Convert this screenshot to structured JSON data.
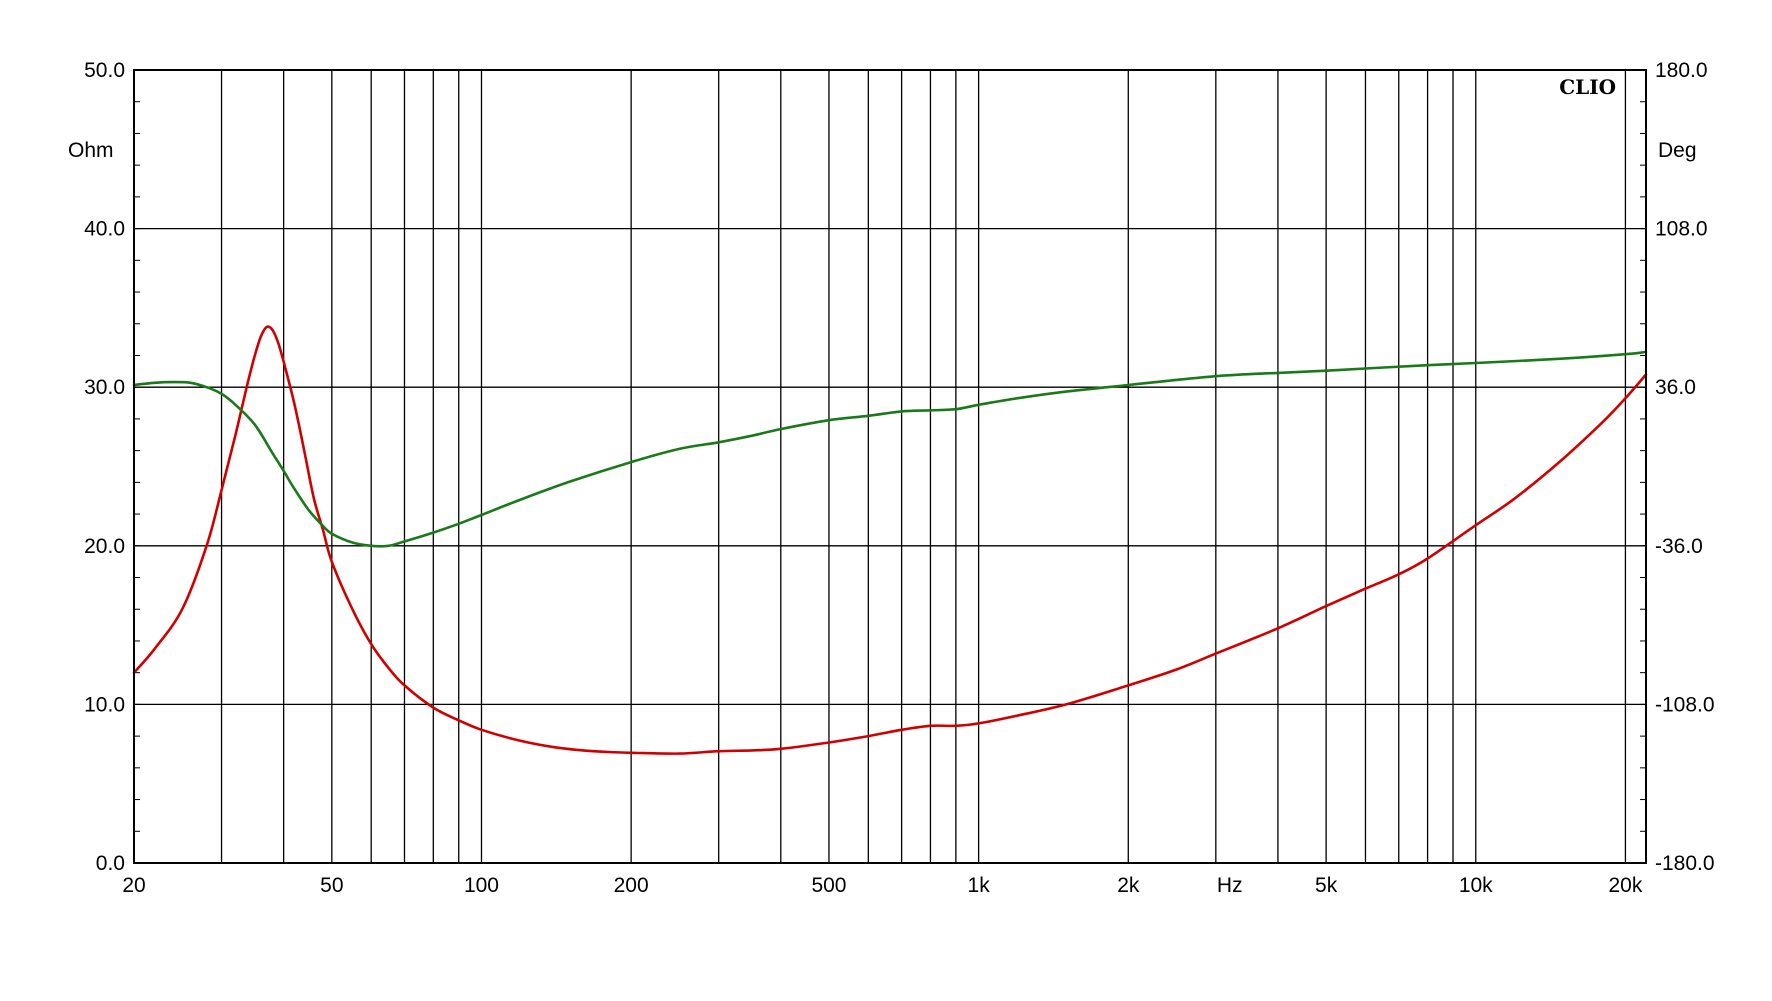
{
  "chart_data": {
    "type": "line",
    "brand_label": "CLIO",
    "x_axis": {
      "scale": "log",
      "range": [
        20,
        22000
      ],
      "unit_label": "Hz",
      "tick_values": [
        20,
        50,
        100,
        200,
        500,
        1000,
        2000,
        5000,
        10000,
        20000
      ],
      "tick_labels": [
        "20",
        "50",
        "100",
        "200",
        "500",
        "1k",
        "2k",
        "5k",
        "10k",
        "20k"
      ],
      "unit_label_position_value": 3200
    },
    "y_left": {
      "range": [
        0,
        50
      ],
      "unit_label": "Ohm",
      "tick_values": [
        0,
        10,
        20,
        30,
        40,
        50
      ],
      "tick_labels": [
        "0.0",
        "10.0",
        "20.0",
        "30.0",
        "40.0",
        "50.0"
      ]
    },
    "y_right": {
      "range": [
        -180,
        180
      ],
      "unit_label": "Deg",
      "tick_values": [
        -180,
        -108,
        -36,
        36,
        108,
        180
      ],
      "tick_labels": [
        "-180.0",
        "-108.0",
        "-36.0",
        "36.0",
        "108.0",
        "180.0"
      ]
    },
    "grid": true,
    "series": [
      {
        "color": "#d00000",
        "axis": "left",
        "points": [
          [
            20,
            12.0
          ],
          [
            22,
            13.5
          ],
          [
            25,
            16.0
          ],
          [
            28,
            20.0
          ],
          [
            30,
            23.5
          ],
          [
            32,
            27.0
          ],
          [
            34,
            30.5
          ],
          [
            35,
            32.0
          ],
          [
            36,
            33.2
          ],
          [
            37,
            33.8
          ],
          [
            38,
            33.6
          ],
          [
            39,
            32.8
          ],
          [
            40,
            31.6
          ],
          [
            42,
            29.0
          ],
          [
            44,
            26.0
          ],
          [
            46,
            23.0
          ],
          [
            48,
            21.0
          ],
          [
            50,
            19.0
          ],
          [
            55,
            16.0
          ],
          [
            60,
            13.8
          ],
          [
            65,
            12.3
          ],
          [
            70,
            11.2
          ],
          [
            80,
            9.8
          ],
          [
            90,
            9.0
          ],
          [
            100,
            8.4
          ],
          [
            120,
            7.7
          ],
          [
            140,
            7.3
          ],
          [
            160,
            7.1
          ],
          [
            180,
            7.0
          ],
          [
            200,
            6.95
          ],
          [
            250,
            6.9
          ],
          [
            300,
            7.05
          ],
          [
            350,
            7.1
          ],
          [
            400,
            7.2
          ],
          [
            500,
            7.6
          ],
          [
            600,
            8.0
          ],
          [
            700,
            8.4
          ],
          [
            800,
            8.65
          ],
          [
            900,
            8.65
          ],
          [
            1000,
            8.8
          ],
          [
            1200,
            9.3
          ],
          [
            1500,
            10.0
          ],
          [
            2000,
            11.2
          ],
          [
            2500,
            12.2
          ],
          [
            3000,
            13.2
          ],
          [
            4000,
            14.8
          ],
          [
            5000,
            16.2
          ],
          [
            6000,
            17.3
          ],
          [
            7000,
            18.2
          ],
          [
            8000,
            19.2
          ],
          [
            10000,
            21.3
          ],
          [
            12000,
            23.0
          ],
          [
            15000,
            25.5
          ],
          [
            18000,
            27.8
          ],
          [
            20000,
            29.3
          ],
          [
            22000,
            30.8
          ]
        ]
      },
      {
        "color": "#1a7a1a",
        "axis": "right",
        "points": [
          [
            20,
            37
          ],
          [
            22,
            38
          ],
          [
            24,
            38.3
          ],
          [
            26,
            38
          ],
          [
            28,
            36
          ],
          [
            30,
            33
          ],
          [
            32,
            28
          ],
          [
            35,
            19
          ],
          [
            38,
            6
          ],
          [
            40,
            -2
          ],
          [
            42,
            -10
          ],
          [
            45,
            -20
          ],
          [
            48,
            -27
          ],
          [
            50,
            -30.5
          ],
          [
            55,
            -34.5
          ],
          [
            60,
            -36
          ],
          [
            65,
            -36
          ],
          [
            70,
            -34
          ],
          [
            80,
            -30
          ],
          [
            90,
            -26
          ],
          [
            100,
            -22
          ],
          [
            120,
            -15
          ],
          [
            150,
            -7
          ],
          [
            200,
            2
          ],
          [
            250,
            8
          ],
          [
            300,
            11
          ],
          [
            350,
            14
          ],
          [
            400,
            17
          ],
          [
            500,
            21
          ],
          [
            600,
            23
          ],
          [
            700,
            25
          ],
          [
            800,
            25.5
          ],
          [
            900,
            26
          ],
          [
            1000,
            28
          ],
          [
            1200,
            31
          ],
          [
            1500,
            34
          ],
          [
            2000,
            37
          ],
          [
            3000,
            41
          ],
          [
            4000,
            42.5
          ],
          [
            5000,
            43.5
          ],
          [
            6000,
            44.5
          ],
          [
            8000,
            46
          ],
          [
            10000,
            47
          ],
          [
            15000,
            49
          ],
          [
            20000,
            51
          ],
          [
            22000,
            52
          ]
        ]
      }
    ]
  }
}
